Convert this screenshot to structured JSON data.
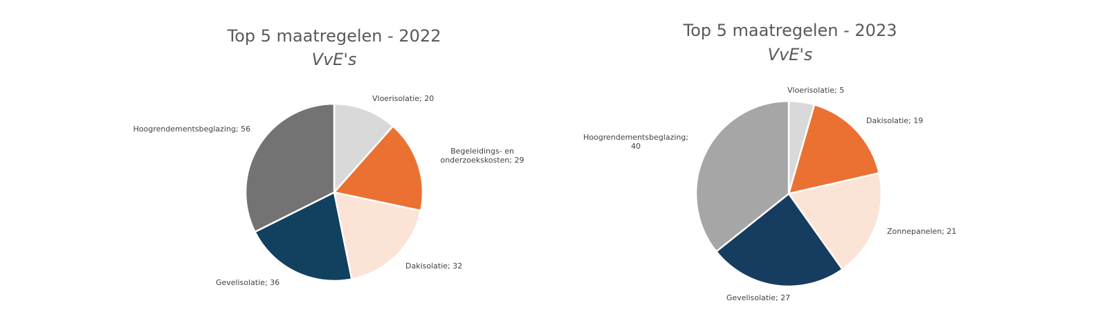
{
  "chart_data": [
    {
      "type": "pie",
      "title": "Top 5 maatregelen - 2022",
      "subtitle": "VvE's",
      "label_separator": "; ",
      "slices": [
        {
          "label": "Vloerisolatie",
          "value": 20,
          "color": "#d9d9d9"
        },
        {
          "label": "Begeleidings- en onderzoekskosten",
          "value": 29,
          "color": "#eb7132"
        },
        {
          "label": "Dakisolatie",
          "value": 32,
          "color": "#fbe3d6"
        },
        {
          "label": "Gevelisolatie",
          "value": 36,
          "color": "#124160"
        },
        {
          "label": "Hoogrendementsbeglazing",
          "value": 56,
          "color": "#737373"
        }
      ]
    },
    {
      "type": "pie",
      "title": "Top 5 maatregelen - 2023",
      "subtitle": "VvE's",
      "label_separator": "; ",
      "slices": [
        {
          "label": "Vloerisolatie",
          "value": 5,
          "color": "#d9d9d9"
        },
        {
          "label": "Dakisolatie",
          "value": 19,
          "color": "#eb7132"
        },
        {
          "label": "Zonnepanelen",
          "value": 21,
          "color": "#fbe3d6"
        },
        {
          "label": "Gevelisolatie",
          "value": 27,
          "color": "#163c60"
        },
        {
          "label": "Hoogrendementsbeglazing",
          "value": 40,
          "color": "#a6a6a6"
        }
      ]
    }
  ]
}
